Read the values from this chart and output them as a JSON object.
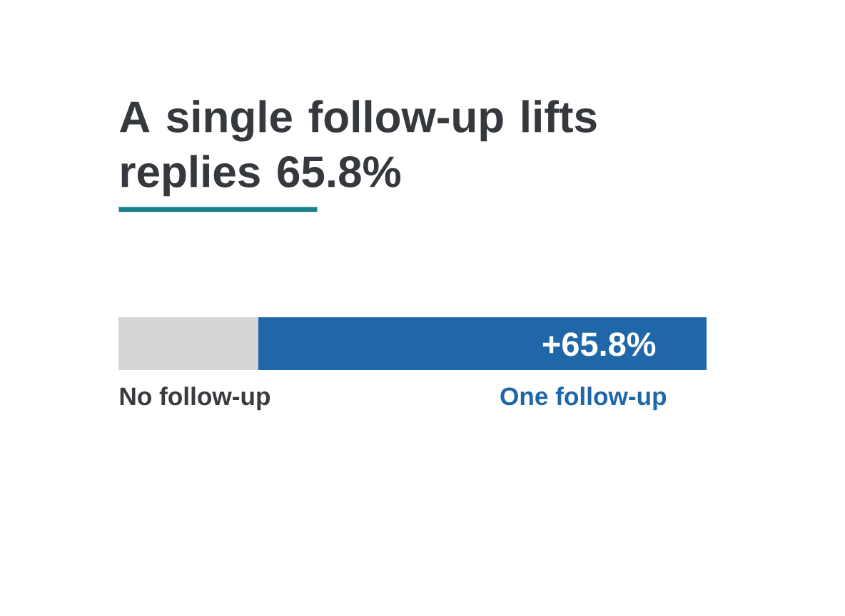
{
  "chart_data": {
    "type": "bar",
    "title": "A single follow-up lifts replies 65.8%",
    "orientation": "horizontal",
    "stacked": true,
    "categories": [
      null
    ],
    "series": [
      {
        "name": "No follow-up",
        "color": "#d4d5d7",
        "values": [
          20.5
        ]
      },
      {
        "name": "One follow-up",
        "color": "#1f67a9",
        "values": [
          65.8
        ],
        "value_labels": [
          "+65.8%"
        ]
      }
    ]
  }
}
